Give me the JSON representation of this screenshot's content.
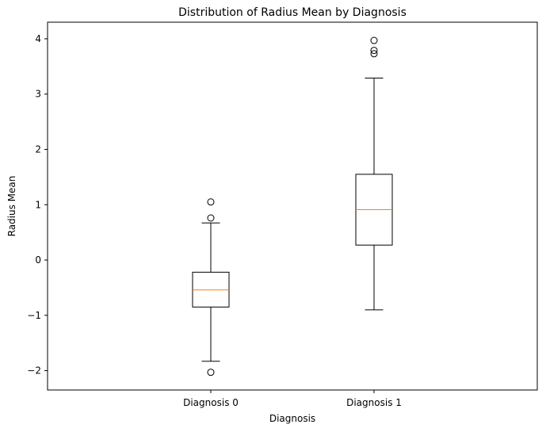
{
  "chart_data": {
    "type": "box",
    "title": "Distribution of Radius Mean by Diagnosis",
    "xlabel": "Diagnosis",
    "ylabel": "Radius Mean",
    "ylim": [
      -2.35,
      4.3
    ],
    "yticks": [
      -2,
      -1,
      0,
      1,
      2,
      3,
      4
    ],
    "ytick_labels": [
      "−2",
      "−1",
      "0",
      "1",
      "2",
      "3",
      "4"
    ],
    "categories": [
      "Diagnosis 0",
      "Diagnosis 1"
    ],
    "boxes": [
      {
        "name": "Diagnosis 0",
        "whisker_low": -1.83,
        "q1": -0.85,
        "median": -0.54,
        "q3": -0.22,
        "whisker_high": 0.67,
        "outliers": [
          1.05,
          0.76,
          -2.03
        ]
      },
      {
        "name": "Diagnosis 1",
        "whisker_low": -0.9,
        "q1": 0.27,
        "median": 0.91,
        "q3": 1.55,
        "whisker_high": 3.29,
        "outliers": [
          3.97,
          3.79,
          3.73
        ]
      }
    ],
    "grid": false,
    "colors": {
      "box": "#000000",
      "median": "#ff7f0e",
      "outlier": "#000000"
    }
  }
}
